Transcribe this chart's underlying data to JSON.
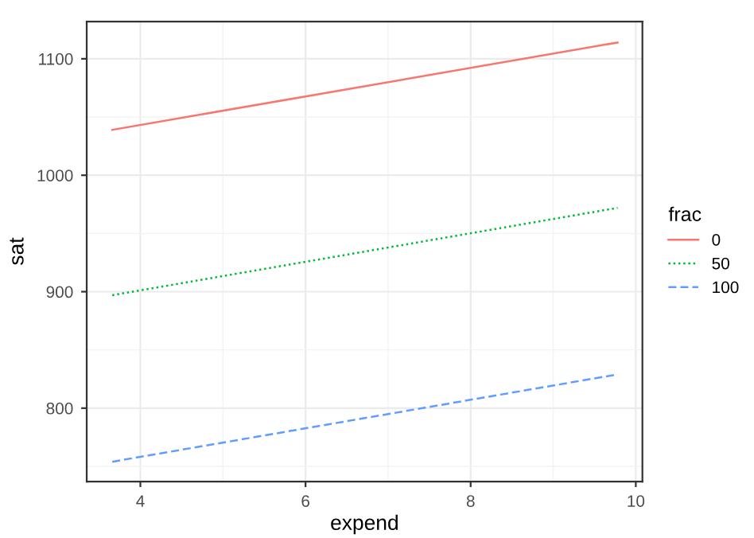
{
  "chart_data": {
    "type": "line",
    "xlabel": "expend",
    "ylabel": "sat",
    "legend_title": "frac",
    "xlim": [
      3.35,
      10.08
    ],
    "xticks": [
      4,
      6,
      8,
      10
    ],
    "ylim": [
      737,
      1132
    ],
    "yticks": [
      800,
      900,
      1000,
      1100
    ],
    "grid": true,
    "legend": "right",
    "marker": "none",
    "x": [
      3.66,
      9.78
    ],
    "series": [
      {
        "name": "0",
        "color": "#f8766d",
        "line_style": "solid",
        "values": [
          1039,
          1114
        ]
      },
      {
        "name": "50",
        "color": "#00ba38",
        "line_style": "dotted",
        "values": [
          897,
          972
        ]
      },
      {
        "name": "100",
        "color": "#619cff",
        "line_style": "dashed",
        "values": [
          754,
          829
        ]
      }
    ]
  }
}
